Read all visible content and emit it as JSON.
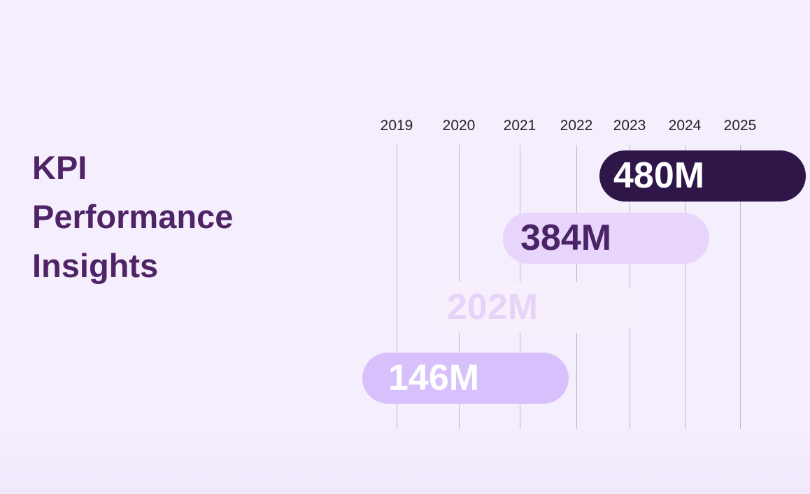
{
  "header": {
    "title": "KPI Performance Insights"
  },
  "timeline": {
    "years": [
      "2019",
      "2020",
      "2021",
      "2022",
      "2023",
      "2024",
      "2025"
    ]
  },
  "pills": [
    {
      "label": "480M"
    },
    {
      "label": "384M"
    },
    {
      "label": "202M"
    },
    {
      "label": "146M"
    }
  ]
}
